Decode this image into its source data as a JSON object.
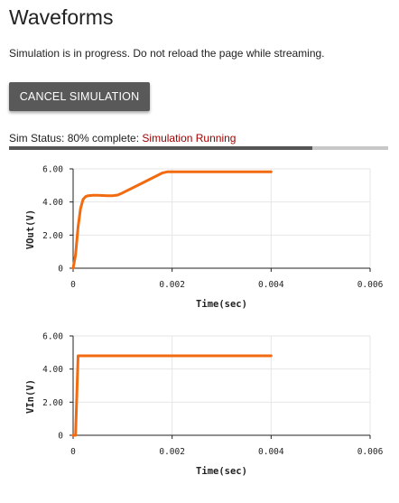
{
  "page": {
    "title": "Waveforms"
  },
  "notice": "Simulation is in progress. Do not reload the page while streaming.",
  "cancel_button": {
    "label": "CANCEL SIMULATION"
  },
  "status": {
    "prefix": "Sim Status: 80% complete: ",
    "state": "Simulation Running",
    "progress": 0.8,
    "state_color": "#a00000"
  },
  "colors": {
    "trace": "#f26b10",
    "grid": "#e6e6e6",
    "progress_fill": "#555555",
    "progress_track": "#c8c8c8",
    "button": "#595959"
  },
  "chart_data": [
    {
      "type": "line",
      "title": "",
      "xlabel": "Time(sec)",
      "ylabel": "VOut(V)",
      "xlim": [
        0,
        0.006
      ],
      "ylim": [
        0,
        6
      ],
      "xticks": [
        "0",
        "0.002",
        "0.004",
        "0.006"
      ],
      "yticks": [
        "0",
        "2.00",
        "4.00",
        "6.00"
      ],
      "grid": true,
      "series": [
        {
          "x": [
            0,
            5e-05,
            0.0001,
            0.00015,
            0.0002,
            0.00025,
            0.0003,
            0.0004,
            0.0005,
            0.0006,
            0.0007,
            0.0008,
            0.0009,
            0.001,
            0.0011,
            0.0012,
            0.0014,
            0.0016,
            0.0018,
            0.0019,
            0.002,
            0.0025,
            0.003,
            0.0035,
            0.004
          ],
          "y": [
            0,
            0.8,
            2.5,
            3.6,
            4.15,
            4.32,
            4.38,
            4.4,
            4.4,
            4.39,
            4.38,
            4.38,
            4.42,
            4.55,
            4.7,
            4.85,
            5.15,
            5.45,
            5.75,
            5.82,
            5.82,
            5.82,
            5.82,
            5.82,
            5.82
          ]
        }
      ]
    },
    {
      "type": "line",
      "title": "",
      "xlabel": "Time(sec)",
      "ylabel": "VIn(V)",
      "xlim": [
        0,
        0.006
      ],
      "ylim": [
        0,
        6
      ],
      "xticks": [
        "0",
        "0.002",
        "0.004",
        "0.006"
      ],
      "yticks": [
        "0",
        "2.00",
        "4.00",
        "6.00"
      ],
      "grid": true,
      "series": [
        {
          "x": [
            0,
            5e-05,
            0.0001,
            0.001,
            0.002,
            0.003,
            0.004
          ],
          "y": [
            0,
            0,
            4.8,
            4.8,
            4.8,
            4.8,
            4.8
          ]
        }
      ]
    }
  ]
}
